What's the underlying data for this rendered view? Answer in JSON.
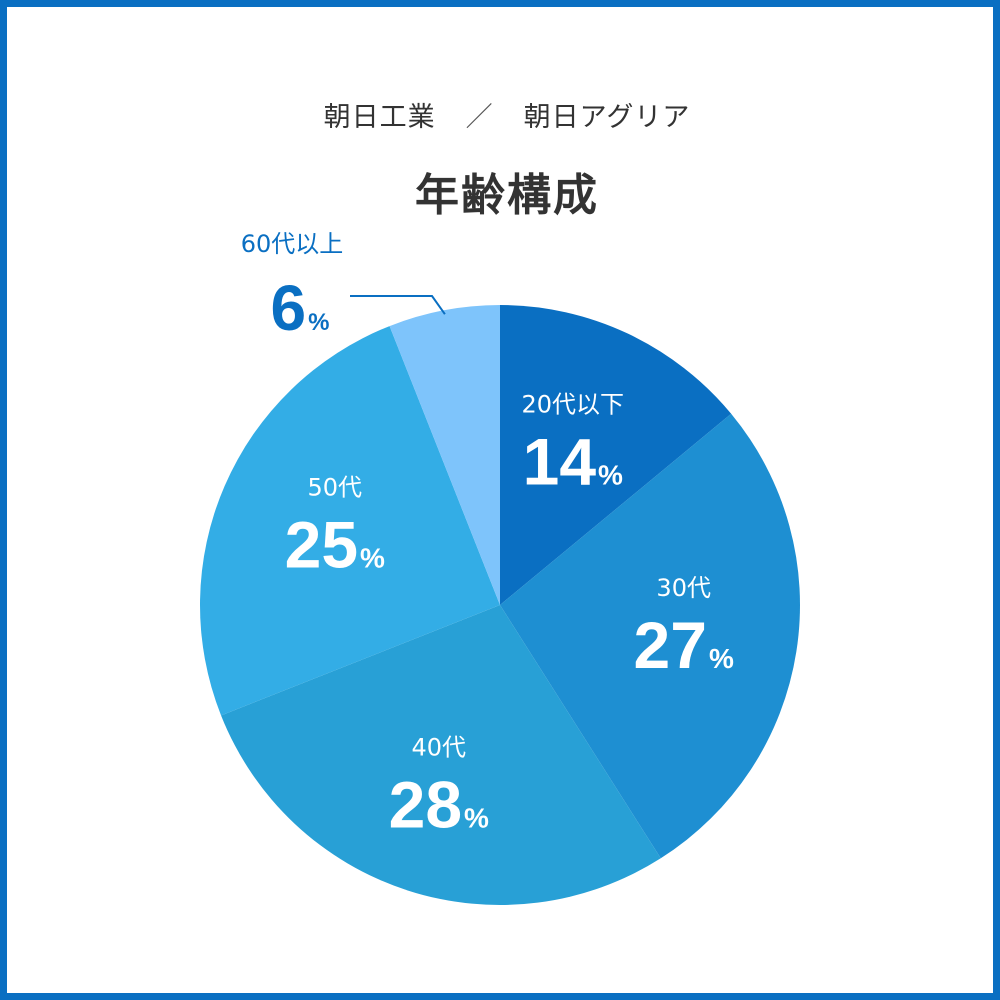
{
  "header": {
    "companies": [
      "朝日工業",
      "朝日アグリア"
    ],
    "separator": "／",
    "title": "年齢構成"
  },
  "colors": {
    "frame": "#0a6fc2",
    "text": "#333333",
    "callout": "#0a6fc2"
  },
  "chart_data": {
    "type": "pie",
    "title": "年齢構成",
    "unit": "%",
    "start": "12 o'clock",
    "direction": "clockwise",
    "slices": [
      {
        "label": "20代以下",
        "value": 14,
        "color": "#0a6fc2"
      },
      {
        "label": "30代",
        "value": 27,
        "color": "#1e8fd2"
      },
      {
        "label": "40代",
        "value": 28,
        "color": "#28a0d6"
      },
      {
        "label": "50代",
        "value": 25,
        "color": "#33ade6"
      },
      {
        "label": "60代以上",
        "value": 6,
        "color": "#7ec4fb"
      }
    ]
  }
}
